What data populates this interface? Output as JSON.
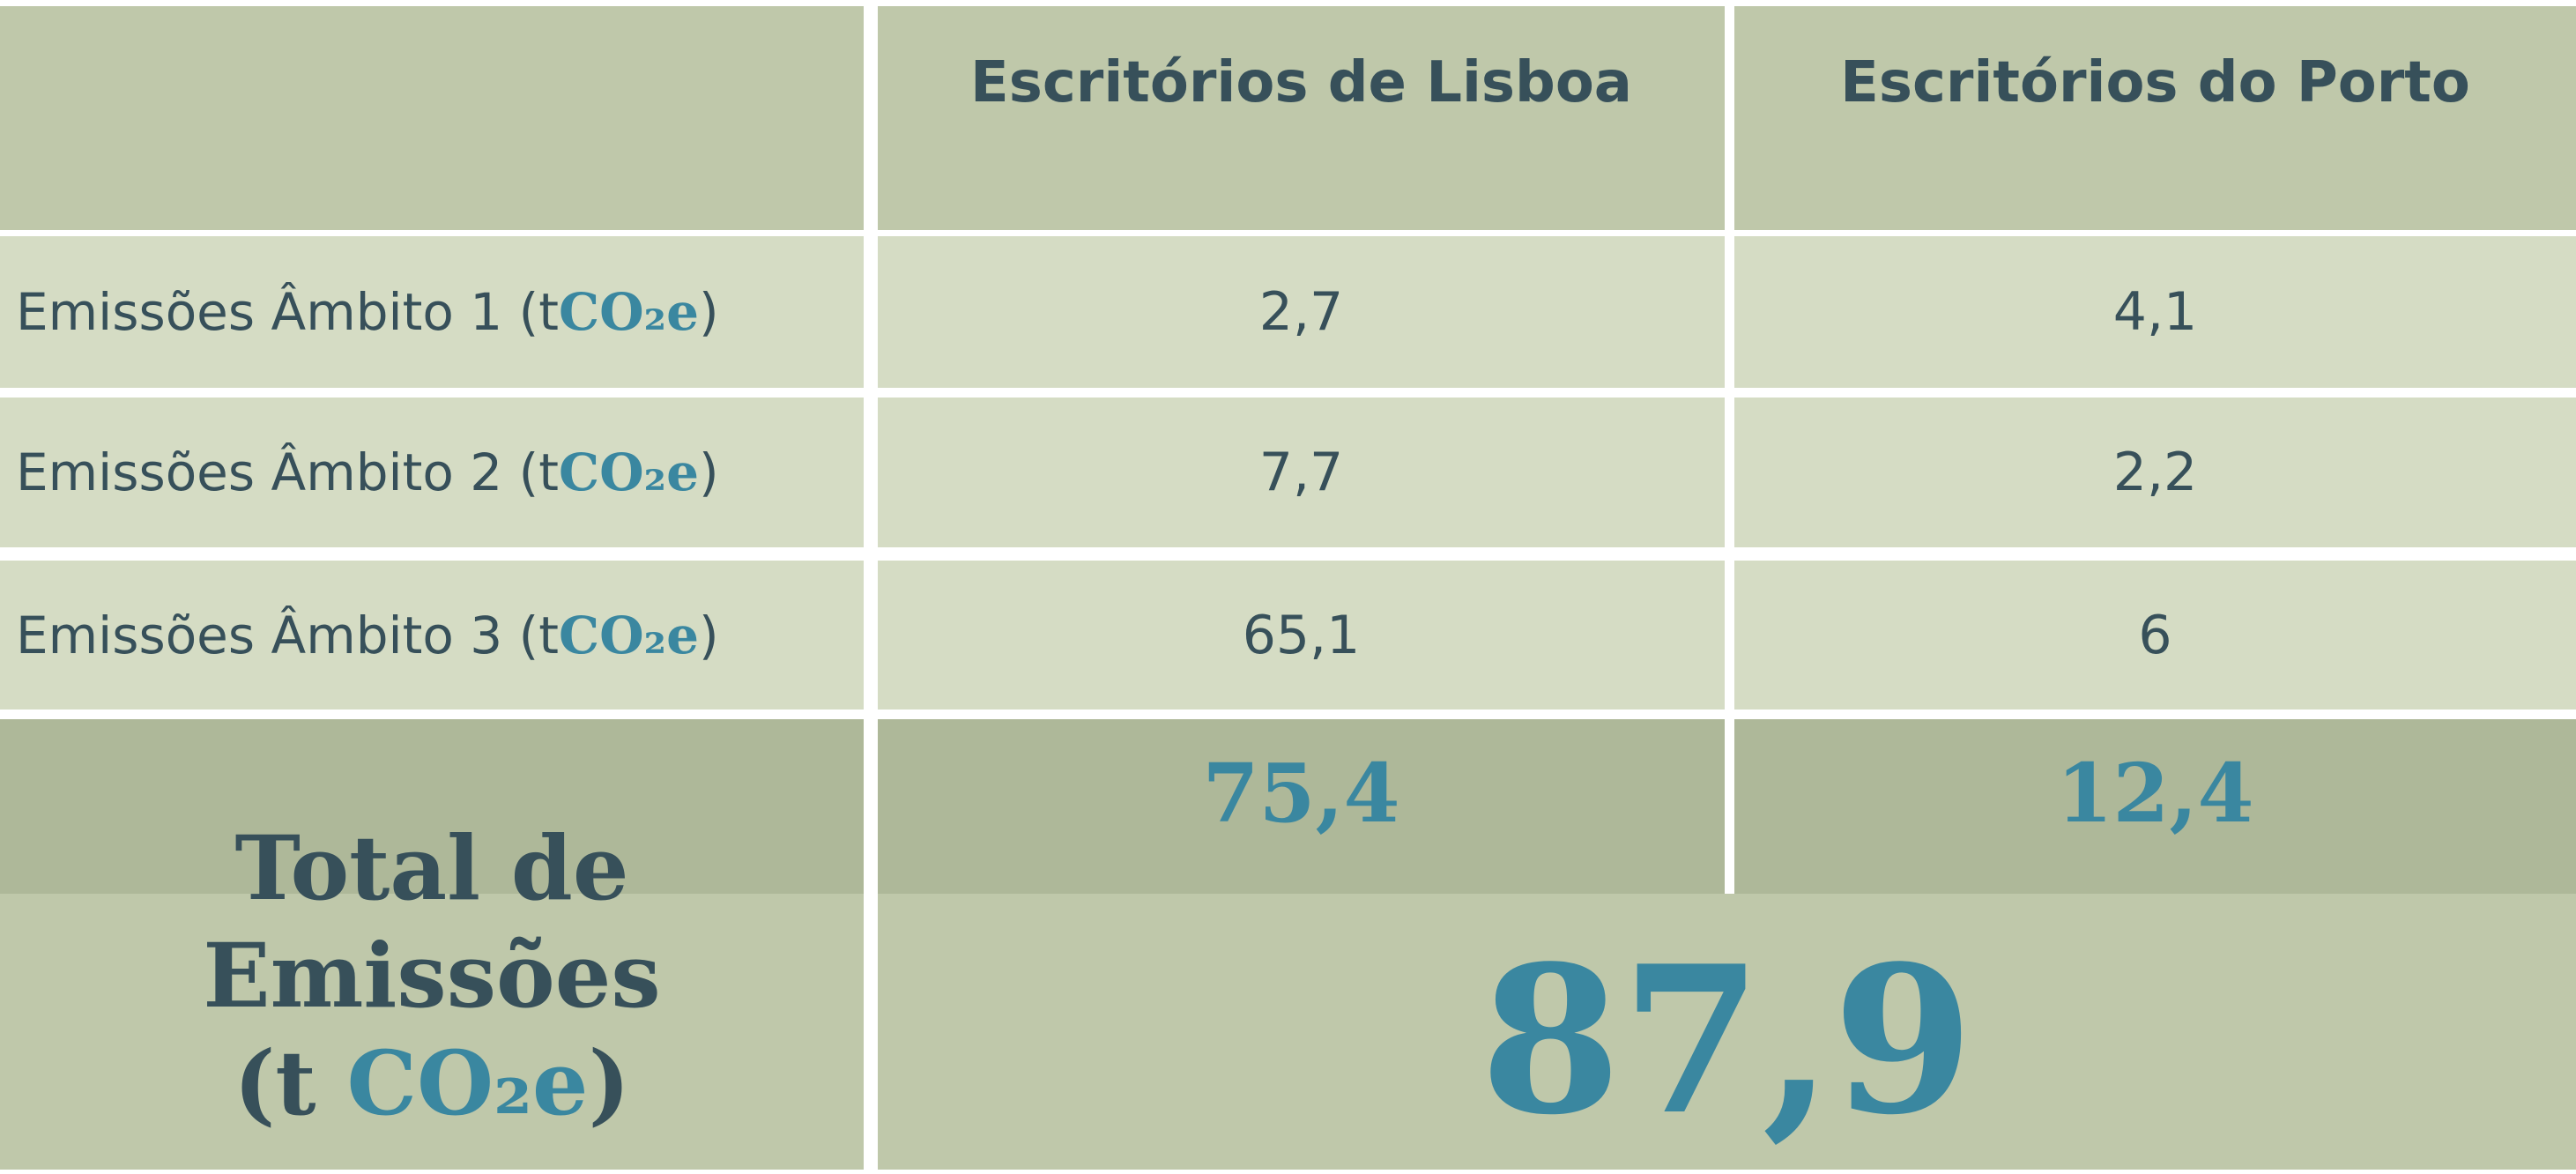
{
  "table": {
    "header": [
      "Escritórios de Lisboa",
      "Escritórios do Porto"
    ],
    "rows": [
      {
        "label": [
          "Emissões Âmbito 1 (t ",
          "CO₂e",
          ")"
        ],
        "values": [
          "2,7",
          "4,1"
        ]
      },
      {
        "label": [
          "Emissões Âmbito 2 (t ",
          "CO₂e",
          ")"
        ],
        "values": [
          "7,7",
          "2,2"
        ]
      },
      {
        "label": [
          "Emissões Âmbito 3 (t ",
          "CO₂e",
          ")"
        ],
        "values": [
          "65,1",
          "6"
        ]
      }
    ],
    "total": {
      "label": [
        "Total de",
        "Emissões",
        "(t ",
        "CO₂e",
        ")"
      ],
      "values": [
        "75,4",
        "12,4"
      ],
      "grand_total": "87,9"
    }
  }
}
